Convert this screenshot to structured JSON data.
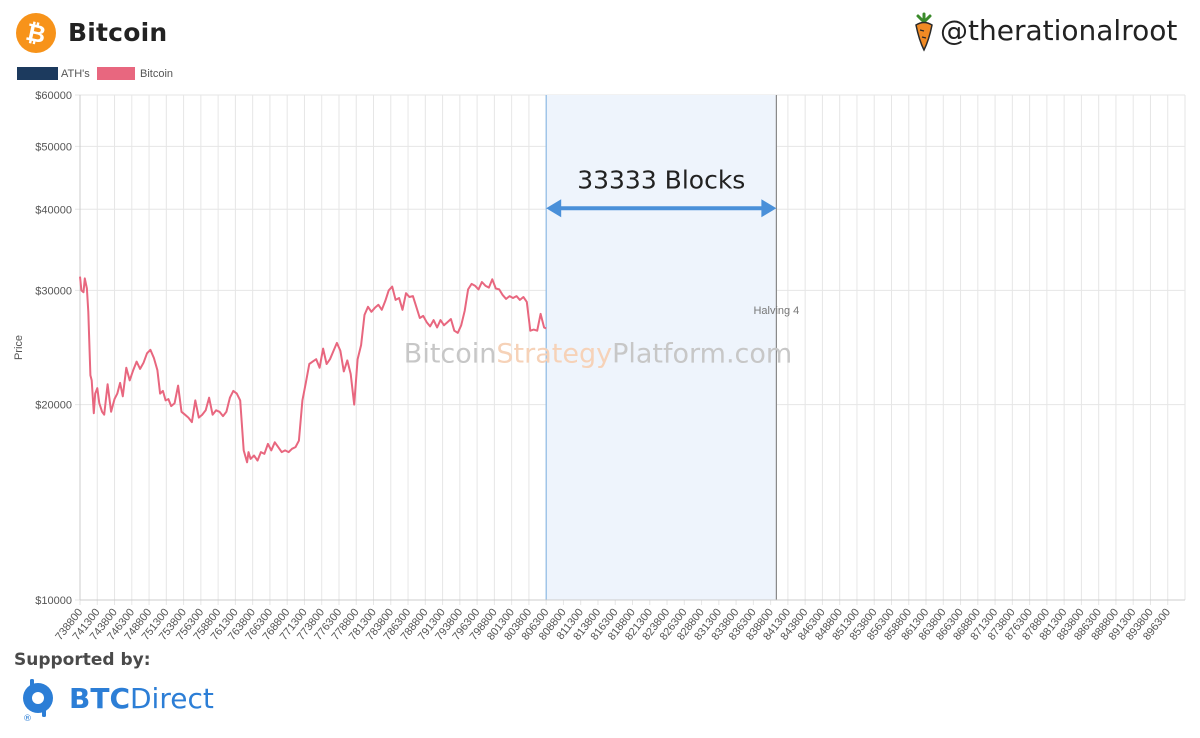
{
  "header": {
    "title": "Bitcoin",
    "handle": "@therationalroot",
    "logo_icon": "bitcoin-logo-icon",
    "handle_icon": "carrot-icon"
  },
  "colors": {
    "bitcoin_line": "#e8677f",
    "ath_legend": "#1c3a5e",
    "annotation_arrow": "#4a90d9",
    "range_fill": "#eef4fc",
    "brand_orange": "#f7931a",
    "sponsor_blue": "#2c7ed6"
  },
  "watermark": {
    "part1": "Bitcoin",
    "part2": "Strategy",
    "part3": "Platform.com"
  },
  "annotations": {
    "range_label": "33333 Blocks",
    "halving_label": "Halving 4",
    "range_start_block": 806300,
    "range_end_block": 839633
  },
  "footer": {
    "supported_label": "Supported by:",
    "sponsor_part1": "BTC",
    "sponsor_part2": "Direct",
    "sponsor_icon": "btcdirect-logo-icon"
  },
  "chart_data": {
    "type": "line",
    "x_axis": {
      "type": "block-height",
      "range": [
        738800,
        898800
      ],
      "tick_step": 2500,
      "tick_start": 738800,
      "tick_labels": [
        "738800",
        "741300",
        "743800",
        "746300",
        "748800",
        "751300",
        "753800",
        "756300",
        "758800",
        "761300",
        "763800",
        "766300",
        "768800",
        "771300",
        "773800",
        "776300",
        "778800",
        "781300",
        "783800",
        "786300",
        "788800",
        "791300",
        "793800",
        "796300",
        "798800",
        "801300",
        "803800",
        "806300",
        "808800",
        "811300",
        "813800",
        "816300",
        "818800",
        "821300",
        "823800",
        "826300",
        "828800",
        "831300",
        "833800",
        "836300",
        "838800",
        "841300",
        "843800",
        "846300",
        "848800",
        "851300",
        "853800",
        "856300",
        "858800",
        "861300",
        "863800",
        "866300",
        "868800",
        "871300",
        "873800",
        "876300",
        "878800",
        "881300",
        "883800",
        "886300",
        "888800",
        "891300",
        "893800",
        "896300"
      ]
    },
    "y_axis": {
      "label": "Price",
      "scale": "log",
      "range": [
        10000,
        60000
      ],
      "tick_values": [
        10000,
        20000,
        30000,
        40000,
        50000,
        60000
      ],
      "tick_labels": [
        "$10000",
        "$20000",
        "$30000",
        "$40000",
        "$50000",
        "$60000"
      ]
    },
    "grid": true,
    "legend": {
      "placement": "top-left",
      "entries": [
        "ATH's",
        "Bitcoin"
      ]
    },
    "series": [
      {
        "name": "Bitcoin",
        "x": [
          738800,
          739000,
          739300,
          739500,
          739800,
          740000,
          740300,
          740500,
          740800,
          741000,
          741300,
          741600,
          742000,
          742300,
          742800,
          743300,
          743800,
          744200,
          744600,
          745000,
          745500,
          746000,
          746500,
          747000,
          747500,
          748000,
          748500,
          749000,
          749500,
          750000,
          750400,
          750800,
          751200,
          751600,
          752000,
          752500,
          753000,
          753500,
          754000,
          754500,
          755000,
          755500,
          756000,
          756500,
          757000,
          757500,
          758000,
          758500,
          759000,
          759500,
          760000,
          760500,
          761000,
          761500,
          762000,
          762500,
          763000,
          763200,
          763500,
          764000,
          764500,
          765000,
          765500,
          766000,
          766500,
          767000,
          767500,
          768000,
          768500,
          769000,
          769500,
          770000,
          770500,
          771000,
          771500,
          772000,
          772500,
          773000,
          773500,
          774000,
          774500,
          775000,
          775500,
          776000,
          776500,
          777000,
          777500,
          778000,
          778500,
          779000,
          779500,
          780000,
          780500,
          781000,
          781500,
          782000,
          782500,
          783000,
          783500,
          784000,
          784500,
          785000,
          785500,
          786000,
          786500,
          787000,
          787500,
          788000,
          788500,
          789000,
          789500,
          790000,
          790500,
          791000,
          791500,
          792000,
          792500,
          793000,
          793500,
          794000,
          794500,
          795000,
          795500,
          796000,
          796500,
          797000,
          797500,
          798000,
          798500,
          799000,
          799500,
          800000,
          800500,
          801000,
          801500,
          802000,
          802500,
          803000,
          803500,
          804000,
          804500,
          805000,
          805500,
          806000,
          806300
        ],
        "values": [
          31500,
          30000,
          29800,
          31300,
          30200,
          27800,
          22200,
          21800,
          19400,
          20800,
          21200,
          20100,
          19500,
          19300,
          21500,
          19500,
          20400,
          20800,
          21600,
          20600,
          22800,
          21800,
          22600,
          23300,
          22700,
          23200,
          24000,
          24300,
          23600,
          22600,
          20800,
          21000,
          20300,
          20400,
          19900,
          20100,
          21400,
          19500,
          19300,
          19100,
          18800,
          20300,
          19100,
          19300,
          19600,
          20500,
          19300,
          19600,
          19500,
          19200,
          19500,
          20500,
          21000,
          20800,
          20300,
          17000,
          16300,
          16900,
          16500,
          16700,
          16400,
          16900,
          16800,
          17400,
          17000,
          17500,
          17200,
          16900,
          17000,
          16900,
          17100,
          17200,
          17600,
          20300,
          21600,
          23100,
          23300,
          23500,
          22800,
          24400,
          23100,
          23500,
          24200,
          24900,
          24200,
          22500,
          23400,
          22300,
          20000,
          23500,
          24700,
          27500,
          28300,
          27800,
          28200,
          28500,
          28000,
          28900,
          30000,
          30400,
          29000,
          29200,
          28000,
          29700,
          29300,
          29400,
          28300,
          27200,
          27400,
          26800,
          26400,
          27000,
          26300,
          27000,
          26500,
          26800,
          27100,
          26000,
          25800,
          26500,
          27900,
          30100,
          30700,
          30500,
          30100,
          30900,
          30500,
          30300,
          31200,
          30200,
          30100,
          29500,
          29100,
          29400,
          29200,
          29400,
          29000,
          29300,
          28800,
          26000,
          26100,
          26000,
          27600,
          26300,
          26200
        ]
      },
      {
        "name": "ATH's",
        "values": []
      }
    ]
  }
}
